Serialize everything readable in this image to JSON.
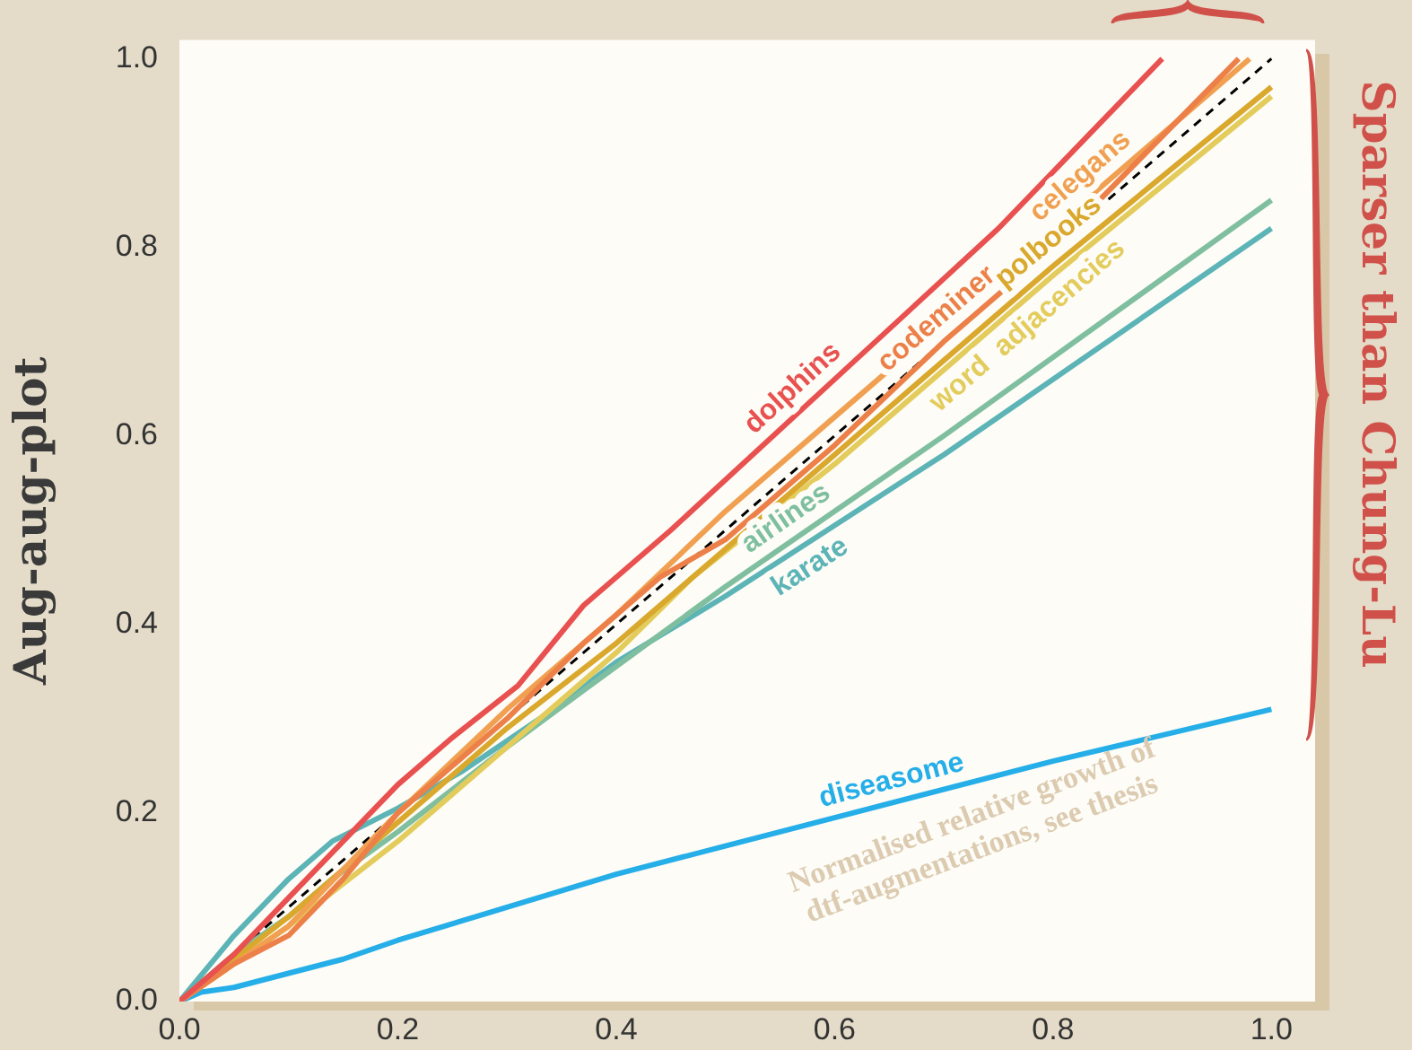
{
  "chart_data": {
    "type": "line",
    "ylabel": "Aug-aug-plot",
    "xlim": [
      0,
      1.04
    ],
    "ylim": [
      0,
      1.02
    ],
    "xticks": [
      {
        "value": 0,
        "label": "0.0"
      },
      {
        "value": 0.2,
        "label": "0.2"
      },
      {
        "value": 0.4,
        "label": "0.4"
      },
      {
        "value": 0.6,
        "label": "0.6"
      },
      {
        "value": 0.8,
        "label": "0.8"
      },
      {
        "value": 1,
        "label": "1.0"
      }
    ],
    "yticks": [
      {
        "value": 0,
        "label": "0.0"
      },
      {
        "value": 0.2,
        "label": "0.2"
      },
      {
        "value": 0.4,
        "label": "0.4"
      },
      {
        "value": 0.6,
        "label": "0.6"
      },
      {
        "value": 0.8,
        "label": "0.8"
      },
      {
        "value": 1,
        "label": "1.0"
      }
    ],
    "grid": false,
    "legend": false,
    "marker": "none",
    "line_style": "solid",
    "series": [
      {
        "name": "dolphins",
        "color": "#e8514f",
        "x": [
          0,
          0.05,
          0.1,
          0.15,
          0.2,
          0.25,
          0.31,
          0.37,
          0.45,
          0.6,
          0.75,
          0.9
        ],
        "values": [
          0,
          0.05,
          0.11,
          0.17,
          0.23,
          0.28,
          0.335,
          0.42,
          0.5,
          0.66,
          0.82,
          1.0
        ]
      },
      {
        "name": "codeminer",
        "color": "#ec8048",
        "x": [
          0,
          0.05,
          0.1,
          0.15,
          0.2,
          0.25,
          0.3,
          0.37,
          0.44,
          0.5,
          0.6,
          0.7,
          0.8,
          0.97
        ],
        "values": [
          0,
          0.04,
          0.07,
          0.13,
          0.2,
          0.25,
          0.3,
          0.38,
          0.45,
          0.49,
          0.59,
          0.7,
          0.8,
          1.0
        ]
      },
      {
        "name": "celegans",
        "color": "#f0a050",
        "x": [
          0,
          0.1,
          0.2,
          0.3,
          0.4,
          0.5,
          0.6,
          0.7,
          0.8,
          0.98
        ],
        "values": [
          0,
          0.08,
          0.2,
          0.31,
          0.41,
          0.52,
          0.62,
          0.72,
          0.82,
          1.0
        ]
      },
      {
        "name": "polbooks",
        "color": "#d9a82c",
        "x": [
          0,
          0.1,
          0.2,
          0.3,
          0.4,
          0.5,
          0.6,
          0.8,
          1.0
        ],
        "values": [
          0,
          0.09,
          0.19,
          0.29,
          0.38,
          0.48,
          0.58,
          0.78,
          0.97
        ]
      },
      {
        "name": "word  adjacencies",
        "color": "#e3cc5c",
        "x": [
          0,
          0.1,
          0.2,
          0.3,
          0.4,
          0.47,
          0.6,
          0.8,
          1.0
        ],
        "values": [
          0,
          0.08,
          0.17,
          0.27,
          0.37,
          0.45,
          0.57,
          0.77,
          0.96
        ]
      },
      {
        "name": "airlines",
        "color": "#7fbf9f",
        "x": [
          0,
          0.05,
          0.1,
          0.14,
          0.2,
          0.3,
          0.37,
          0.5,
          0.7,
          1.0
        ],
        "values": [
          0,
          0.05,
          0.09,
          0.13,
          0.18,
          0.27,
          0.33,
          0.44,
          0.6,
          0.85
        ]
      },
      {
        "name": "karate",
        "color": "#5cb4b6",
        "x": [
          0,
          0.05,
          0.1,
          0.14,
          0.2,
          0.26,
          0.33,
          0.4,
          0.5,
          0.7,
          1.0
        ],
        "values": [
          0,
          0.07,
          0.13,
          0.17,
          0.205,
          0.245,
          0.3,
          0.36,
          0.43,
          0.58,
          0.82
        ]
      },
      {
        "name": "diseasome",
        "color": "#25aee8",
        "x": [
          0,
          0.02,
          0.05,
          0.1,
          0.15,
          0.2,
          0.3,
          0.4,
          0.5,
          0.6,
          0.8,
          1.0
        ],
        "values": [
          0,
          0.01,
          0.015,
          0.03,
          0.045,
          0.065,
          0.1,
          0.135,
          0.165,
          0.195,
          0.255,
          0.31
        ]
      },
      {
        "color": "#000000",
        "line_style": "dashed",
        "x": [
          0,
          1
        ],
        "values": [
          0,
          1
        ]
      }
    ],
    "annotations": [
      "Normalised relative growth of dtf-augmentations, see thesis",
      "Sparser than Chung-Lu"
    ]
  }
}
